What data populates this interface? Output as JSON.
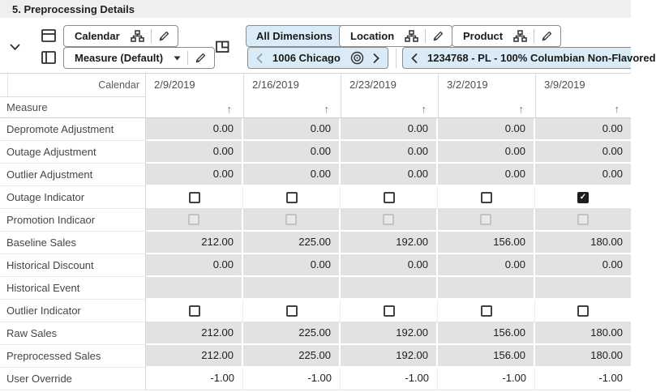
{
  "title": "5. Preprocessing Details",
  "toolbar": {
    "calendar_tile": {
      "label": "Calendar"
    },
    "measure_tile": {
      "label": "Measure (Default)"
    },
    "all_dimensions": {
      "label": "All Dimensions"
    },
    "location_tile": {
      "label": "Location"
    },
    "product_tile": {
      "label": "Product"
    },
    "location_nav": {
      "value": "1006 Chicago"
    },
    "product_nav": {
      "value": "1234768 - PL - 100% Columbian Non-Flavored"
    }
  },
  "colors": {
    "accent_fill": "#d8ebf6",
    "shaded_cell": "#e3e1e1",
    "titlebar_bg": "#f1efee",
    "checkbox_checked": "#1e1e1e"
  },
  "grid": {
    "corner_label": "Calendar",
    "dimension_label": "Measure",
    "sort_icon": "↑",
    "check_icon": "✓",
    "columns": [
      "2/9/2019",
      "2/16/2019",
      "2/23/2019",
      "3/2/2019",
      "3/9/2019"
    ],
    "rows": [
      {
        "label": "Depromote Adjustment",
        "type": "number",
        "shaded": true,
        "values": [
          "0.00",
          "0.00",
          "0.00",
          "0.00",
          "0.00"
        ]
      },
      {
        "label": "Outage Adjustment",
        "type": "number",
        "shaded": true,
        "values": [
          "0.00",
          "0.00",
          "0.00",
          "0.00",
          "0.00"
        ]
      },
      {
        "label": "Outlier Adjustment",
        "type": "number",
        "shaded": true,
        "values": [
          "0.00",
          "0.00",
          "0.00",
          "0.00",
          "0.00"
        ]
      },
      {
        "label": "Outage Indicator",
        "type": "checkbox",
        "shaded": false,
        "values": [
          false,
          false,
          false,
          false,
          true
        ]
      },
      {
        "label": "Promotion Indicaor",
        "type": "checkbox_disabled",
        "shaded": true,
        "values": [
          false,
          false,
          false,
          false,
          false
        ]
      },
      {
        "label": "Baseline Sales",
        "type": "number",
        "shaded": true,
        "values": [
          "212.00",
          "225.00",
          "192.00",
          "156.00",
          "180.00"
        ]
      },
      {
        "label": "Historical Discount",
        "type": "number",
        "shaded": true,
        "values": [
          "0.00",
          "0.00",
          "0.00",
          "0.00",
          "0.00"
        ]
      },
      {
        "label": "Historical Event",
        "type": "empty",
        "shaded": true,
        "values": [
          "",
          "",
          "",
          "",
          ""
        ]
      },
      {
        "label": "Outlier Indicator",
        "type": "checkbox",
        "shaded": false,
        "values": [
          false,
          false,
          false,
          false,
          false
        ]
      },
      {
        "label": "Raw Sales",
        "type": "number",
        "shaded": true,
        "values": [
          "212.00",
          "225.00",
          "192.00",
          "156.00",
          "180.00"
        ]
      },
      {
        "label": "Preprocessed Sales",
        "type": "number",
        "shaded": true,
        "values": [
          "212.00",
          "225.00",
          "192.00",
          "156.00",
          "180.00"
        ]
      },
      {
        "label": "User Override",
        "type": "number",
        "shaded": false,
        "values": [
          "-1.00",
          "-1.00",
          "-1.00",
          "-1.00",
          "-1.00"
        ]
      }
    ]
  }
}
